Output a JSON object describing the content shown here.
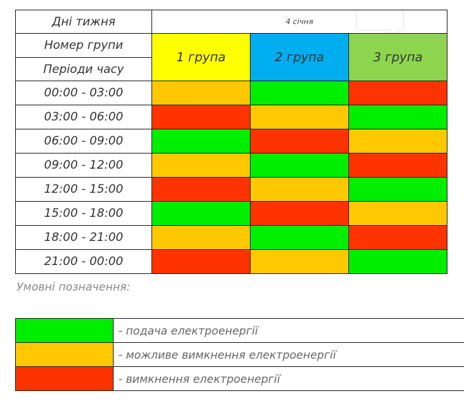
{
  "header": {
    "days_label": "Дні тижня",
    "date": "4 січня",
    "group_number_label": "Номер групи",
    "periods_label": "Періоди часу"
  },
  "groups": [
    "1 група",
    "2 група",
    "3 група"
  ],
  "rows": [
    {
      "period": "00:00 - 03:00",
      "statuses": [
        "orange",
        "green",
        "red"
      ]
    },
    {
      "period": "03:00 - 06:00",
      "statuses": [
        "red",
        "orange",
        "green"
      ]
    },
    {
      "period": "06:00 - 09:00",
      "statuses": [
        "green",
        "red",
        "orange"
      ]
    },
    {
      "period": "09:00 - 12:00",
      "statuses": [
        "orange",
        "green",
        "red"
      ]
    },
    {
      "period": "12:00 - 15:00",
      "statuses": [
        "red",
        "orange",
        "green"
      ]
    },
    {
      "period": "15:00 - 18:00",
      "statuses": [
        "green",
        "red",
        "orange"
      ]
    },
    {
      "period": "18:00 - 21:00",
      "statuses": [
        "orange",
        "green",
        "red"
      ]
    },
    {
      "period": "21:00 - 00:00",
      "statuses": [
        "red",
        "orange",
        "green"
      ]
    }
  ],
  "legend": {
    "caption": "Умовні позначення:",
    "items": [
      {
        "status": "green",
        "text": "- подача електроенергії"
      },
      {
        "status": "orange",
        "text": "- можливе вимкнення електроенергії"
      },
      {
        "status": "red",
        "text": "- вимкнення електроенергії"
      }
    ]
  },
  "colors": {
    "green": "#00ee00",
    "orange": "#ffc800",
    "red": "#ff3300",
    "group1_header": "#ffff00",
    "group2_header": "#00aeef",
    "group3_header": "#8dd44f"
  }
}
